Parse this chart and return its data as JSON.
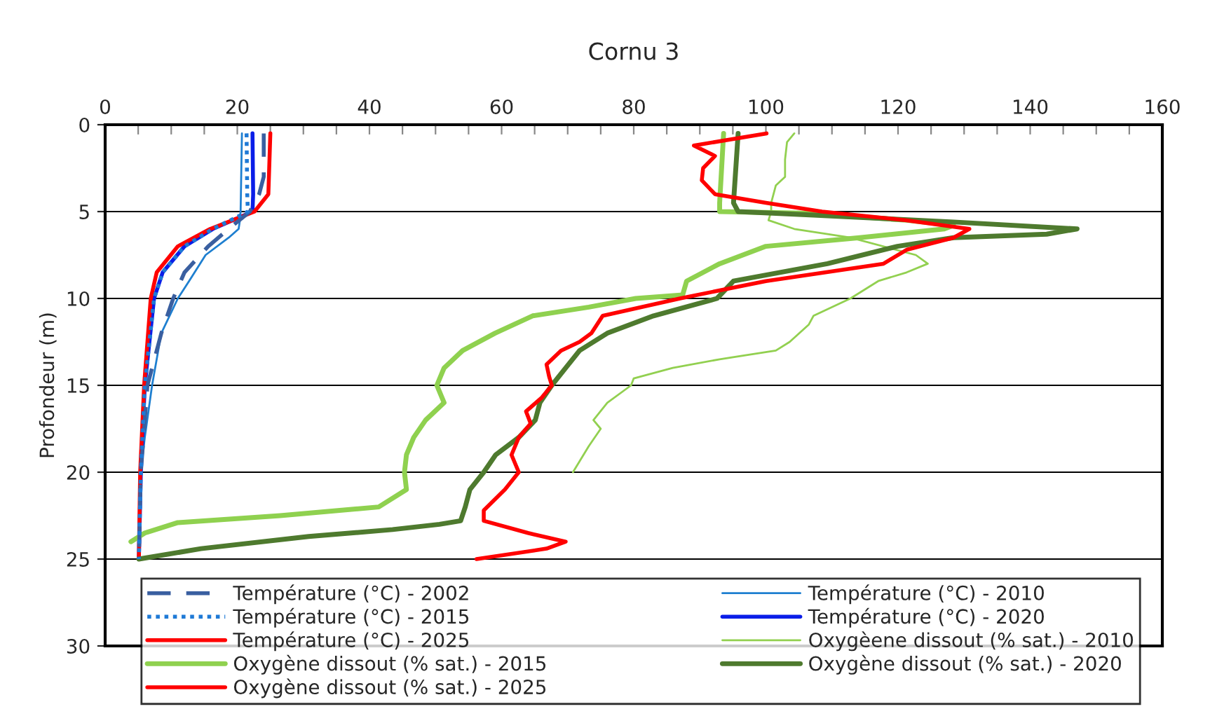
{
  "chart_data": {
    "type": "line",
    "title": "Cornu 3",
    "ylabel": "Profondeur (m)",
    "xlim": [
      0,
      160
    ],
    "xticks": [
      0,
      {
        "value": 5,
        "label": null
      },
      {
        "value": 10,
        "label": null
      },
      {
        "value": 15,
        "label": null
      },
      20,
      {
        "value": 25,
        "label": null
      },
      {
        "value": 30,
        "label": null
      },
      {
        "value": 35,
        "label": null
      },
      40,
      {
        "value": 45,
        "label": null
      },
      {
        "value": 50,
        "label": null
      },
      {
        "value": 55,
        "label": null
      },
      60,
      {
        "value": 65,
        "label": null
      },
      {
        "value": 70,
        "label": null
      },
      {
        "value": 75,
        "label": null
      },
      80,
      {
        "value": 85,
        "label": null
      },
      {
        "value": 90,
        "label": null
      },
      {
        "value": 95,
        "label": null
      },
      100,
      {
        "value": 105,
        "label": null
      },
      {
        "value": 110,
        "label": null
      },
      {
        "value": 115,
        "label": null
      },
      120,
      {
        "value": 125,
        "label": null
      },
      {
        "value": 130,
        "label": null
      },
      {
        "value": 135,
        "label": null
      },
      140,
      {
        "value": 145,
        "label": null
      },
      {
        "value": 150,
        "label": null
      },
      {
        "value": 155,
        "label": null
      },
      160
    ],
    "ylim": [
      30,
      0
    ],
    "yticks": [
      0,
      5,
      10,
      15,
      20,
      25,
      30
    ],
    "grid": "y",
    "legend": "bottom",
    "marker": "none",
    "series": [
      {
        "name": "Température (°C) - 2002",
        "color": "#3a5fa0",
        "line_style": "dashed",
        "x": [
          24.0,
          24.0,
          23.3,
          21.9,
          18.7,
          15.6,
          12.0,
          10.3,
          8.5,
          6.4,
          5.4,
          5.1
        ],
        "values": [
          0.5,
          3,
          4,
          5,
          6,
          7,
          8.5,
          10,
          12,
          15,
          20,
          25
        ]
      },
      {
        "name": "Température (°C) - 2010",
        "color": "#1e7fd0",
        "line_style": "solid",
        "x": [
          20.7,
          20.5,
          20.4,
          20.2,
          18.7,
          15.2,
          12.7,
          11.0,
          8.5,
          7.1,
          6.0,
          5.4,
          5.1
        ],
        "values": [
          0.5,
          5,
          5.5,
          6,
          6.5,
          7.5,
          9,
          10,
          12,
          15,
          18,
          20,
          25
        ]
      },
      {
        "name": "Température (°C) - 2015",
        "color": "#1f7ad6",
        "line_style": "dotted",
        "x": [
          21.4,
          21.5,
          21.6,
          16.3,
          12.0,
          8.7,
          7.4,
          6.0,
          5.4,
          5.1
        ],
        "values": [
          0.5,
          4,
          5,
          6,
          7,
          8.5,
          10,
          15,
          20,
          25
        ]
      },
      {
        "name": "Température (°C) - 2020",
        "color": "#0a1ee8",
        "line_style": "solid",
        "x": [
          22.3,
          22.4,
          22.3,
          16.3,
          12.0,
          8.7,
          7.4,
          6.0,
          5.4,
          5.1
        ],
        "values": [
          0.5,
          4,
          5,
          6,
          7,
          8.5,
          10,
          15,
          20,
          25
        ]
      },
      {
        "name": "Température (°C) - 2025",
        "color": "#ff0000",
        "line_style": "solid",
        "x": [
          25.0,
          24.7,
          22.6,
          15.9,
          11.0,
          7.8,
          6.9,
          5.9,
          5.3,
          5.1
        ],
        "values": [
          0.5,
          4,
          5,
          6,
          7,
          8.5,
          10,
          15,
          20,
          25
        ]
      },
      {
        "name": "Oxygèene dissout (% sat.) - 2010",
        "color": "#92d050",
        "line_style": "solid",
        "x": [
          104.3,
          103.2,
          102.9,
          102.9,
          101.5,
          100.8,
          100.8,
          100.4,
          104.3,
          112.8,
          122.7,
          124.5,
          121.3,
          117.0,
          112.8,
          107.2,
          106.5,
          103.6,
          101.5,
          93.0,
          85.9,
          80.0,
          79.6,
          76.0,
          73.9,
          75.0,
          73.2,
          70.8
        ],
        "values": [
          0.5,
          1,
          2,
          3,
          3.5,
          4.5,
          5,
          5.5,
          6,
          6.5,
          7.5,
          8,
          8.5,
          9,
          10,
          11,
          11.5,
          12.5,
          13,
          13.5,
          14,
          14.6,
          15,
          16,
          17,
          17.5,
          18.5,
          20
        ]
      },
      {
        "name": "Oxygène dissout (% sat.) - 2015",
        "color": "#8fd14f",
        "line_style": "solid",
        "x": [
          93.6,
          93.0,
          93.0,
          107.0,
          121.3,
          128.4,
          127.0,
          114.2,
          100.0,
          93.0,
          88.0,
          87.4,
          80.3,
          73.2,
          64.7,
          59.0,
          54.1,
          51.3,
          50.2,
          51.3,
          48.5,
          46.7,
          45.6,
          45.3,
          45.6,
          41.4,
          26.5,
          11.0,
          6.0,
          3.9
        ],
        "values": [
          0.5,
          4.5,
          5,
          5.1,
          5.5,
          5.8,
          6,
          6.5,
          7,
          8,
          9,
          9.8,
          10,
          10.5,
          11,
          12,
          13,
          14,
          15,
          16,
          17,
          18,
          19,
          20,
          21,
          22,
          22.5,
          22.9,
          23.5,
          24
        ]
      },
      {
        "name": "Oxygène dissout (% sat.) - 2020",
        "color": "#4e7a2e",
        "line_style": "solid",
        "x": [
          95.8,
          95.1,
          95.8,
          107.2,
          128.4,
          147.1,
          142.5,
          128.4,
          119.9,
          109.3,
          95.1,
          92.6,
          83.0,
          76.0,
          71.8,
          69.7,
          67.6,
          65.8,
          65.1,
          62.6,
          59.1,
          57.3,
          55.2,
          54.5,
          53.8,
          50.6,
          43.5,
          30.8,
          14.5,
          5.1
        ],
        "values": [
          0.5,
          4.5,
          5,
          5.2,
          5.6,
          6,
          6.3,
          6.5,
          7,
          8,
          9,
          10,
          11,
          12,
          13,
          14,
          15,
          16,
          17,
          18,
          19,
          20,
          21,
          22,
          22.8,
          23,
          23.3,
          23.7,
          24.4,
          25
        ]
      },
      {
        "name": "Oxygène dissout (% sat.) - 2025",
        "color": "#ff0000",
        "line_style": "solid",
        "x": [
          100.1,
          89.1,
          92.3,
          90.5,
          90.3,
          92.3,
          100.0,
          108.5,
          121.3,
          130.8,
          128.4,
          121.3,
          117.8,
          100.0,
          87.0,
          75.3,
          73.6,
          71.8,
          69.0,
          66.8,
          67.2,
          67.6,
          66.1,
          63.7,
          64.4,
          62.6,
          61.5,
          62.6,
          60.5,
          57.3,
          57.3,
          64.0,
          69.7,
          66.8,
          56.2
        ],
        "values": [
          0.5,
          1.2,
          1.8,
          2.5,
          3.2,
          4,
          4.5,
          5,
          5.5,
          6,
          6.5,
          7.2,
          8,
          9,
          10,
          11,
          12,
          12.5,
          13,
          13.8,
          14.5,
          15,
          15.7,
          16.5,
          17.2,
          18,
          19,
          20,
          21,
          22.2,
          22.8,
          23.5,
          24,
          24.4,
          25
        ]
      }
    ]
  }
}
